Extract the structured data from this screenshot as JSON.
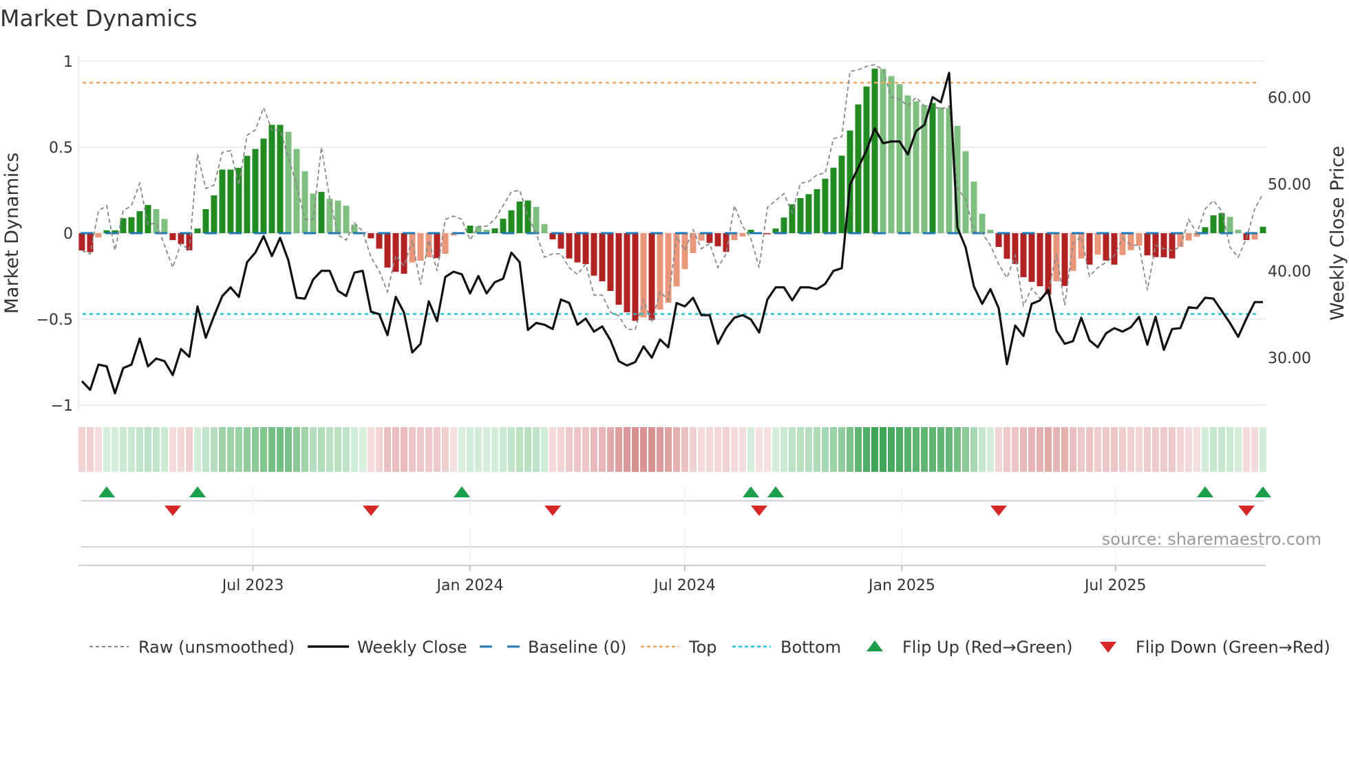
{
  "chart_data": {
    "type": "bar",
    "title": "Market Dynamics",
    "ylabel_left": "Market Dynamics",
    "ylabel_right": "Weekly Close Price",
    "source": "source: sharemaestro.com",
    "x_start": "2023-02-06",
    "x_step_days": 7,
    "ylim_left": [
      -1,
      1
    ],
    "ylim_right": [
      24.5,
      64.2
    ],
    "left_ticks": [
      {
        "value": 1,
        "label": "1"
      },
      {
        "value": 0.5,
        "label": "0.5"
      },
      {
        "value": 0,
        "label": "0"
      },
      {
        "value": -0.5,
        "label": "−0.5"
      },
      {
        "value": -1,
        "label": "−1"
      }
    ],
    "right_ticks": [
      {
        "value": 60,
        "label": "60.00"
      },
      {
        "value": 50,
        "label": "50.00"
      },
      {
        "value": 40,
        "label": "40.00"
      },
      {
        "value": 30,
        "label": "30.00"
      }
    ],
    "x_ticks": [
      {
        "date": "2023-07-01",
        "label": "Jul 2023"
      },
      {
        "date": "2024-01-01",
        "label": "Jan 2024"
      },
      {
        "date": "2024-07-01",
        "label": "Jul 2024"
      },
      {
        "date": "2025-01-01",
        "label": "Jan 2025"
      },
      {
        "date": "2025-07-01",
        "label": "Jul 2025"
      }
    ],
    "top_level": 0.875,
    "bottom_level": -0.47,
    "baseline": 0,
    "colors": {
      "green_strong": "#228b22",
      "green_weak": "#7fbf7f",
      "red_strong": "#b22222",
      "red_weak": "#e9967a",
      "close": "#111111",
      "raw": "#888888",
      "baseline": "#1f77b4",
      "top": "#f0a45e",
      "bottom": "#22c3d6",
      "flip_up": "#1a9e4a",
      "flip_down": "#d62728"
    },
    "series": [
      {
        "name": "Market Dynamics (smoothed)",
        "axis": "left",
        "values": [
          -0.1,
          -0.11,
          -0.025,
          0.017,
          0.017,
          0.087,
          0.093,
          0.128,
          0.164,
          0.14,
          0.083,
          -0.04,
          -0.063,
          -0.1,
          0.027,
          0.14,
          0.22,
          0.37,
          0.37,
          0.38,
          0.45,
          0.49,
          0.55,
          0.63,
          0.63,
          0.59,
          0.49,
          0.36,
          0.23,
          0.24,
          0.2,
          0.19,
          0.16,
          0.05,
          0.005,
          -0.03,
          -0.09,
          -0.2,
          -0.225,
          -0.236,
          -0.17,
          -0.16,
          -0.14,
          -0.145,
          -0.12,
          -0.013,
          0.004,
          0.044,
          0.04,
          0.02,
          0.028,
          0.084,
          0.133,
          0.184,
          0.19,
          0.153,
          0.053,
          -0.036,
          -0.09,
          -0.147,
          -0.17,
          -0.18,
          -0.247,
          -0.28,
          -0.336,
          -0.416,
          -0.46,
          -0.51,
          -0.49,
          -0.505,
          -0.445,
          -0.405,
          -0.31,
          -0.209,
          -0.116,
          -0.043,
          -0.056,
          -0.076,
          -0.109,
          -0.04,
          -0.019,
          0.02,
          -0.004,
          -0.006,
          0.027,
          0.091,
          0.168,
          0.204,
          0.227,
          0.256,
          0.317,
          0.381,
          0.451,
          0.597,
          0.749,
          0.853,
          0.957,
          0.955,
          0.913,
          0.867,
          0.801,
          0.767,
          0.745,
          0.757,
          0.732,
          0.728,
          0.624,
          0.477,
          0.3,
          0.113,
          0.02,
          -0.08,
          -0.149,
          -0.179,
          -0.256,
          -0.283,
          -0.309,
          -0.356,
          -0.28,
          -0.307,
          -0.219,
          -0.147,
          -0.183,
          -0.125,
          -0.159,
          -0.183,
          -0.127,
          -0.099,
          -0.073,
          -0.129,
          -0.139,
          -0.14,
          -0.147,
          -0.08,
          -0.043,
          -0.02,
          0.035,
          0.104,
          0.117,
          0.095,
          0.02,
          -0.04,
          -0.037,
          0.037
        ]
      },
      {
        "name": "Raw (unsmoothed)",
        "axis": "left",
        "values": [
          -0.1,
          -0.12,
          0.13,
          0.16,
          -0.1,
          0.13,
          0.16,
          0.29,
          0.05,
          0.06,
          -0.07,
          -0.2,
          -0.06,
          -0.1,
          0.46,
          0.26,
          0.28,
          0.47,
          0.48,
          0.28,
          0.57,
          0.6,
          0.73,
          0.6,
          0.6,
          0.44,
          0.28,
          0.08,
          0.08,
          0.5,
          0.2,
          -0.01,
          -0.04,
          0.06,
          0.01,
          -0.14,
          -0.22,
          -0.34,
          -0.13,
          -0.19,
          -0.04,
          -0.3,
          -0.04,
          -0.22,
          0.08,
          0.1,
          0.08,
          -0.04,
          0.04,
          0.04,
          0.08,
          0.16,
          0.24,
          0.25,
          0.1,
          0.0,
          -0.14,
          -0.12,
          -0.12,
          -0.2,
          -0.24,
          -0.18,
          -0.36,
          -0.36,
          -0.46,
          -0.48,
          -0.56,
          -0.56,
          -0.39,
          -0.52,
          -0.34,
          -0.39,
          -0.02,
          -0.1,
          0.02,
          -0.09,
          -0.06,
          -0.2,
          -0.12,
          0.16,
          0.04,
          -0.03,
          -0.2,
          0.15,
          0.19,
          0.23,
          0.12,
          0.29,
          0.3,
          0.34,
          0.35,
          0.55,
          0.56,
          0.94,
          0.95,
          0.97,
          0.98,
          0.95,
          0.79,
          0.78,
          0.74,
          0.79,
          0.74,
          0.74,
          0.72,
          0.74,
          0.26,
          0.2,
          0.01,
          0.0,
          -0.07,
          -0.18,
          -0.26,
          -0.13,
          -0.42,
          -0.32,
          -0.38,
          -0.34,
          -0.12,
          -0.42,
          -0.06,
          -0.02,
          -0.25,
          -0.2,
          -0.17,
          -0.13,
          -0.03,
          -0.07,
          -0.07,
          -0.33,
          -0.07,
          -0.09,
          -0.1,
          -0.08,
          0.08,
          0.0,
          0.14,
          0.19,
          0.13,
          -0.08,
          -0.14,
          -0.03,
          0.14,
          0.23
        ]
      },
      {
        "name": "Weekly Close",
        "axis": "right",
        "values": [
          27.3,
          26.3,
          29.2,
          29.0,
          25.9,
          28.8,
          29.2,
          32.2,
          29.0,
          29.9,
          29.6,
          28.0,
          31.0,
          30.1,
          35.9,
          32.3,
          34.8,
          37.1,
          38.1,
          37.0,
          41.0,
          42.1,
          44.0,
          41.7,
          43.8,
          41.2,
          36.9,
          36.8,
          39.0,
          40.0,
          40.0,
          37.7,
          37.1,
          39.8,
          40.0,
          35.3,
          35.0,
          32.6,
          37.0,
          35.2,
          30.6,
          31.6,
          36.5,
          34.2,
          39.3,
          39.9,
          39.6,
          37.4,
          39.4,
          37.4,
          38.7,
          39.1,
          42.1,
          41.0,
          33.2,
          34.0,
          33.8,
          33.3,
          36.7,
          36.3,
          33.8,
          34.5,
          33.0,
          33.6,
          32.0,
          29.6,
          29.1,
          29.5,
          31.3,
          30.0,
          32.1,
          31.2,
          36.3,
          35.9,
          36.9,
          34.9,
          34.9,
          31.6,
          33.4,
          34.6,
          34.9,
          34.4,
          32.9,
          36.7,
          38.1,
          38.1,
          36.6,
          38.1,
          38.1,
          37.9,
          38.5,
          40.0,
          40.3,
          49.9,
          51.9,
          53.9,
          56.4,
          54.7,
          54.9,
          54.9,
          53.4,
          56.1,
          56.8,
          60.0,
          59.4,
          62.8,
          45.0,
          42.7,
          38.2,
          36.2,
          37.9,
          35.7,
          29.25,
          33.7,
          32.5,
          36.2,
          36.6,
          37.8,
          33.1,
          31.6,
          31.9,
          34.6,
          32.0,
          31.2,
          32.8,
          33.4,
          33.0,
          33.5,
          34.7,
          31.5,
          34.7,
          30.9,
          33.3,
          33.4,
          35.8,
          35.7,
          36.9,
          36.8,
          35.4,
          34.0,
          32.4,
          34.5,
          36.4,
          36.4
        ]
      }
    ],
    "flip_up_weeks": [
      3,
      14,
      46,
      81,
      84,
      136,
      143
    ],
    "flip_down_weeks": [
      11,
      35,
      57,
      82,
      111,
      141
    ],
    "legend": {
      "placement": "bottom",
      "items": [
        {
          "key": "raw",
          "label": "Raw (unsmoothed)"
        },
        {
          "key": "close",
          "label": "Weekly Close"
        },
        {
          "key": "baseline",
          "label": "Baseline (0)"
        },
        {
          "key": "top",
          "label": "Top"
        },
        {
          "key": "bottom",
          "label": "Bottom"
        },
        {
          "key": "flip_up",
          "label": "Flip Up (Red→Green)"
        },
        {
          "key": "flip_down",
          "label": "Flip Down (Green→Red)"
        }
      ]
    }
  }
}
